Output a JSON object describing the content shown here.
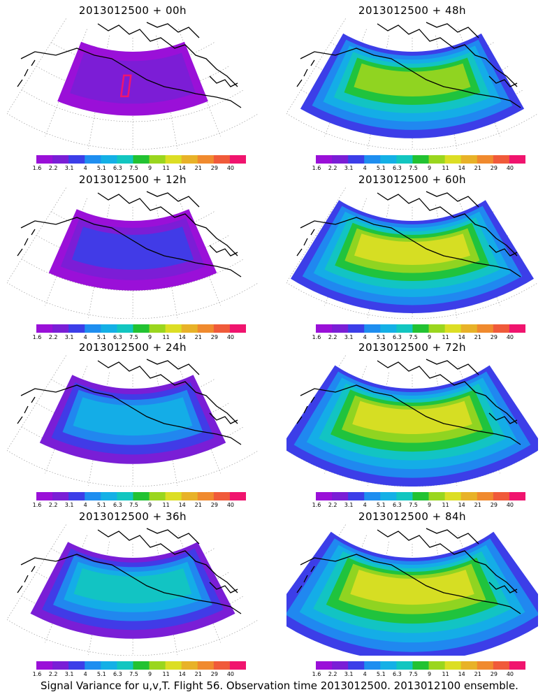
{
  "colorbar": {
    "labels": [
      "1.6",
      "2.2",
      "3.1",
      "4",
      "5.1",
      "6.3",
      "7.5",
      "9",
      "11",
      "14",
      "21",
      "29",
      "40"
    ],
    "colors": [
      "#9a10d8",
      "#7a1ed6",
      "#3c3ee8",
      "#1e8ef0",
      "#14b0e6",
      "#12c6c0",
      "#22c232",
      "#9ad61e",
      "#dcde24",
      "#e8b228",
      "#f08a2e",
      "#f05a3a",
      "#f0146e"
    ]
  },
  "panels": [
    {
      "title": "2013012500 + 00h",
      "level": 0
    },
    {
      "title": "2013012500 + 48h",
      "level": 4
    },
    {
      "title": "2013012500 + 12h",
      "level": 1
    },
    {
      "title": "2013012500 + 60h",
      "level": 5
    },
    {
      "title": "2013012500 + 24h",
      "level": 2
    },
    {
      "title": "2013012500 + 72h",
      "level": 6
    },
    {
      "title": "2013012500 + 36h",
      "level": 3
    },
    {
      "title": "2013012500 + 84h",
      "level": 7
    }
  ],
  "caption": "Signal Variance for u,v,T. Flight 56. Observation time 2013012500. 2013012100 ensemble."
}
